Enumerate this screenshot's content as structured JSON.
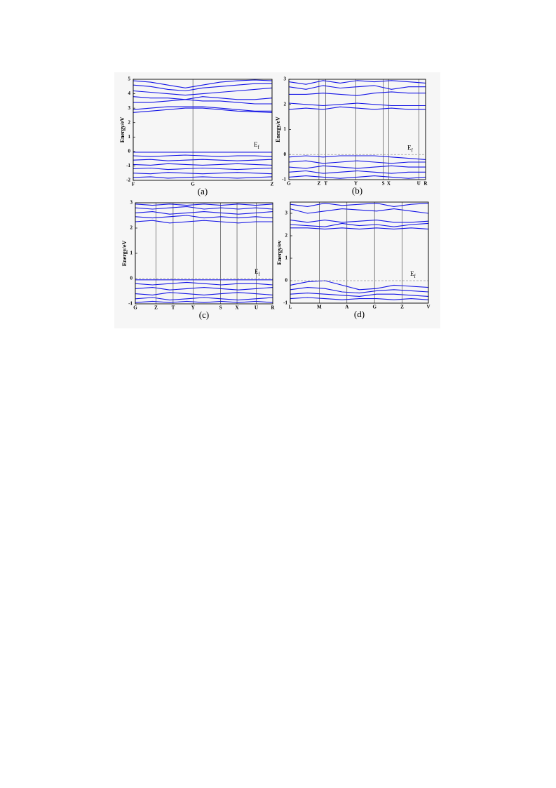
{
  "chart_data": [
    {
      "type": "line",
      "caption": "(a)",
      "y_label": "Energy/eV",
      "ef_label": "E",
      "ef_sub": "f",
      "xlim": [
        0,
        1
      ],
      "ylim": [
        -2,
        5
      ],
      "yticks": [
        -2,
        -1,
        0,
        1,
        2,
        3,
        4,
        5
      ],
      "xticks": [
        {
          "value": 0,
          "label": "F"
        },
        {
          "value": 0.43,
          "label": "G"
        },
        {
          "value": 1,
          "label": "Z"
        }
      ],
      "x": [
        0,
        0.125,
        0.25,
        0.375,
        0.5,
        0.625,
        0.75,
        0.875,
        1
      ],
      "series": [
        {
          "color": "#1414e6",
          "values": [
            4.9,
            4.8,
            4.6,
            4.4,
            4.6,
            4.8,
            4.9,
            4.95,
            4.9
          ]
        },
        {
          "color": "#1414e6",
          "values": [
            4.6,
            4.5,
            4.3,
            4.2,
            4.4,
            4.5,
            4.6,
            4.7,
            4.7
          ]
        },
        {
          "color": "#1414e6",
          "values": [
            4.2,
            4.1,
            4.0,
            3.9,
            4.0,
            4.1,
            4.2,
            4.3,
            4.4
          ]
        },
        {
          "color": "#1414e6",
          "values": [
            3.8,
            3.7,
            3.7,
            3.6,
            3.8,
            3.7,
            3.6,
            3.6,
            3.7
          ]
        },
        {
          "color": "#1414e6",
          "values": [
            3.4,
            3.4,
            3.5,
            3.6,
            3.5,
            3.5,
            3.4,
            3.3,
            3.3
          ]
        },
        {
          "color": "#1414e6",
          "values": [
            2.9,
            3.0,
            3.1,
            3.1,
            3.1,
            3.0,
            2.9,
            2.8,
            2.8
          ]
        },
        {
          "color": "#1414e6",
          "values": [
            2.7,
            2.8,
            2.9,
            3.0,
            3.0,
            2.9,
            2.8,
            2.75,
            2.7
          ]
        },
        {
          "color": "#1414e6",
          "values": [
            -0.05,
            -0.05,
            -0.05,
            -0.05,
            -0.05,
            -0.05,
            -0.05,
            -0.05,
            -0.05
          ]
        },
        {
          "color": "#1414e6",
          "values": [
            -0.3,
            -0.35,
            -0.3,
            -0.25,
            -0.3,
            -0.35,
            -0.3,
            -0.3,
            -0.35
          ]
        },
        {
          "color": "#1414e6",
          "values": [
            -0.6,
            -0.55,
            -0.65,
            -0.6,
            -0.55,
            -0.6,
            -0.65,
            -0.6,
            -0.55
          ]
        },
        {
          "color": "#1414e6",
          "values": [
            -0.9,
            -0.95,
            -0.85,
            -0.9,
            -0.95,
            -0.9,
            -0.85,
            -0.9,
            -0.95
          ]
        },
        {
          "color": "#1414e6",
          "values": [
            -1.2,
            -1.15,
            -1.25,
            -1.2,
            -1.15,
            -1.2,
            -1.25,
            -1.2,
            -1.15
          ]
        },
        {
          "color": "#1414e6",
          "values": [
            -1.5,
            -1.55,
            -1.45,
            -1.5,
            -1.55,
            -1.5,
            -1.45,
            -1.5,
            -1.55
          ]
        },
        {
          "color": "#1414e6",
          "values": [
            -1.8,
            -1.75,
            -1.85,
            -1.8,
            -1.75,
            -1.8,
            -1.85,
            -1.8,
            -1.75
          ]
        }
      ]
    },
    {
      "type": "line",
      "caption": "(b)",
      "y_label": "Energy/eV",
      "ef_label": "E",
      "ef_sub": "f",
      "fermi_line": 0,
      "xlim": [
        0,
        1
      ],
      "ylim": [
        -1,
        3
      ],
      "yticks": [
        -1,
        0,
        1,
        2,
        3
      ],
      "xticks": [
        {
          "value": 0,
          "label": "G"
        },
        {
          "value": 0.22,
          "label": "Z"
        },
        {
          "value": 0.27,
          "label": "T"
        },
        {
          "value": 0.49,
          "label": "Y"
        },
        {
          "value": 0.69,
          "label": "S"
        },
        {
          "value": 0.73,
          "label": "X"
        },
        {
          "value": 0.95,
          "label": "U"
        },
        {
          "value": 1,
          "label": "R"
        }
      ],
      "x": [
        0,
        0.125,
        0.25,
        0.375,
        0.5,
        0.625,
        0.75,
        0.875,
        1
      ],
      "series": [
        {
          "color": "#1414e6",
          "values": [
            2.9,
            2.8,
            2.95,
            2.85,
            2.95,
            2.9,
            2.95,
            2.9,
            2.85
          ]
        },
        {
          "color": "#1414e6",
          "values": [
            2.7,
            2.6,
            2.75,
            2.65,
            2.7,
            2.75,
            2.6,
            2.7,
            2.7
          ]
        },
        {
          "color": "#1414e6",
          "values": [
            2.4,
            2.4,
            2.45,
            2.4,
            2.35,
            2.45,
            2.5,
            2.45,
            2.45
          ]
        },
        {
          "color": "#1414e6",
          "values": [
            2.05,
            2.0,
            1.95,
            2.0,
            2.05,
            2.0,
            1.95,
            1.95,
            1.95
          ]
        },
        {
          "color": "#1414e6",
          "values": [
            1.8,
            1.85,
            1.8,
            1.9,
            1.85,
            1.8,
            1.85,
            1.8,
            1.8
          ]
        },
        {
          "color": "#1414e6",
          "values": [
            -0.1,
            -0.05,
            -0.1,
            -0.05,
            -0.05,
            -0.05,
            -0.1,
            -0.15,
            -0.2
          ]
        },
        {
          "color": "#1414e6",
          "values": [
            -0.3,
            -0.25,
            -0.35,
            -0.3,
            -0.25,
            -0.3,
            -0.35,
            -0.3,
            -0.3
          ]
        },
        {
          "color": "#1414e6",
          "values": [
            -0.5,
            -0.55,
            -0.45,
            -0.5,
            -0.55,
            -0.5,
            -0.45,
            -0.5,
            -0.5
          ]
        },
        {
          "color": "#1414e6",
          "values": [
            -0.7,
            -0.65,
            -0.75,
            -0.7,
            -0.65,
            -0.7,
            -0.75,
            -0.7,
            -0.7
          ]
        },
        {
          "color": "#1414e6",
          "values": [
            -0.9,
            -0.85,
            -0.9,
            -0.95,
            -0.9,
            -0.85,
            -0.9,
            -0.95,
            -0.9
          ]
        }
      ]
    },
    {
      "type": "line",
      "caption": "(c)",
      "y_label": "Energy/eV",
      "ef_label": "E",
      "ef_sub": "f",
      "fermi_line": 0,
      "xlim": [
        0,
        1
      ],
      "ylim": [
        -1,
        3
      ],
      "yticks": [
        -1,
        0,
        1,
        2,
        3
      ],
      "xticks": [
        {
          "value": 0,
          "label": "G"
        },
        {
          "value": 0.15,
          "label": "Z"
        },
        {
          "value": 0.275,
          "label": "T"
        },
        {
          "value": 0.42,
          "label": "Y"
        },
        {
          "value": 0.62,
          "label": "S"
        },
        {
          "value": 0.74,
          "label": "X"
        },
        {
          "value": 0.88,
          "label": "U"
        },
        {
          "value": 1,
          "label": "R"
        }
      ],
      "x": [
        0,
        0.125,
        0.25,
        0.375,
        0.5,
        0.625,
        0.75,
        0.875,
        1
      ],
      "series": [
        {
          "color": "#1414e6",
          "values": [
            2.95,
            2.9,
            2.95,
            2.9,
            2.95,
            2.9,
            2.95,
            2.9,
            2.95
          ]
        },
        {
          "color": "#1414e6",
          "values": [
            2.8,
            2.75,
            2.8,
            2.85,
            2.75,
            2.8,
            2.75,
            2.8,
            2.75
          ]
        },
        {
          "color": "#1414e6",
          "values": [
            2.6,
            2.65,
            2.55,
            2.6,
            2.65,
            2.6,
            2.55,
            2.6,
            2.65
          ]
        },
        {
          "color": "#1414e6",
          "values": [
            2.45,
            2.4,
            2.45,
            2.5,
            2.4,
            2.45,
            2.4,
            2.45,
            2.4
          ]
        },
        {
          "color": "#1414e6",
          "values": [
            2.25,
            2.3,
            2.2,
            2.25,
            2.3,
            2.25,
            2.2,
            2.25,
            2.25
          ]
        },
        {
          "color": "#1414e6",
          "values": [
            -0.05,
            -0.05,
            -0.05,
            -0.05,
            -0.05,
            -0.05,
            -0.05,
            -0.05,
            -0.05
          ]
        },
        {
          "color": "#1414e6",
          "values": [
            -0.2,
            -0.25,
            -0.2,
            -0.15,
            -0.2,
            -0.25,
            -0.2,
            -0.2,
            -0.25
          ]
        },
        {
          "color": "#1414e6",
          "values": [
            -0.4,
            -0.35,
            -0.45,
            -0.4,
            -0.35,
            -0.4,
            -0.45,
            -0.4,
            -0.35
          ]
        },
        {
          "color": "#1414e6",
          "values": [
            -0.6,
            -0.65,
            -0.55,
            -0.6,
            -0.65,
            -0.6,
            -0.55,
            -0.6,
            -0.65
          ]
        },
        {
          "color": "#1414e6",
          "values": [
            -0.8,
            -0.75,
            -0.85,
            -0.8,
            -0.75,
            -0.8,
            -0.85,
            -0.8,
            -0.75
          ]
        },
        {
          "color": "#1414e6",
          "values": [
            -0.95,
            -0.9,
            -0.95,
            -0.9,
            -0.95,
            -0.9,
            -0.95,
            -0.9,
            -0.95
          ]
        }
      ]
    },
    {
      "type": "line",
      "caption": "(d)",
      "y_label": "Energy/ev",
      "ef_label": "E",
      "ef_sub": "f",
      "fermi_line": 0,
      "xlim": [
        0,
        1
      ],
      "ylim": [
        -1,
        3.5
      ],
      "yticks": [
        -1,
        0,
        1,
        2,
        3
      ],
      "xticks": [
        {
          "value": 0,
          "label": "L"
        },
        {
          "value": 0.21,
          "label": "M"
        },
        {
          "value": 0.41,
          "label": "A"
        },
        {
          "value": 0.61,
          "label": "G"
        },
        {
          "value": 0.81,
          "label": "Z"
        },
        {
          "value": 1,
          "label": "V"
        }
      ],
      "x": [
        0,
        0.125,
        0.25,
        0.375,
        0.5,
        0.625,
        0.75,
        0.875,
        1
      ],
      "series": [
        {
          "color": "#1414e6",
          "values": [
            3.4,
            3.3,
            3.45,
            3.35,
            3.4,
            3.45,
            3.3,
            3.4,
            3.45
          ]
        },
        {
          "color": "#1414e6",
          "values": [
            3.2,
            3.0,
            3.1,
            3.2,
            3.15,
            3.1,
            3.2,
            3.1,
            3.0
          ]
        },
        {
          "color": "#1414e6",
          "values": [
            2.7,
            2.6,
            2.7,
            2.6,
            2.65,
            2.7,
            2.6,
            2.6,
            2.65
          ]
        },
        {
          "color": "#1414e6",
          "values": [
            2.5,
            2.45,
            2.4,
            2.55,
            2.45,
            2.5,
            2.4,
            2.5,
            2.55
          ]
        },
        {
          "color": "#1414e6",
          "values": [
            2.35,
            2.35,
            2.3,
            2.35,
            2.3,
            2.35,
            2.3,
            2.35,
            2.3
          ]
        },
        {
          "color": "#1414e6",
          "values": [
            -0.2,
            -0.05,
            0.0,
            -0.2,
            -0.4,
            -0.35,
            -0.2,
            -0.25,
            -0.3
          ]
        },
        {
          "color": "#1414e6",
          "values": [
            -0.4,
            -0.3,
            -0.35,
            -0.5,
            -0.55,
            -0.45,
            -0.4,
            -0.45,
            -0.5
          ]
        },
        {
          "color": "#1414e6",
          "values": [
            -0.6,
            -0.55,
            -0.6,
            -0.65,
            -0.7,
            -0.6,
            -0.6,
            -0.65,
            -0.7
          ]
        },
        {
          "color": "#1414e6",
          "values": [
            -0.8,
            -0.75,
            -0.8,
            -0.85,
            -0.8,
            -0.8,
            -0.85,
            -0.8,
            -0.85
          ]
        }
      ]
    }
  ]
}
